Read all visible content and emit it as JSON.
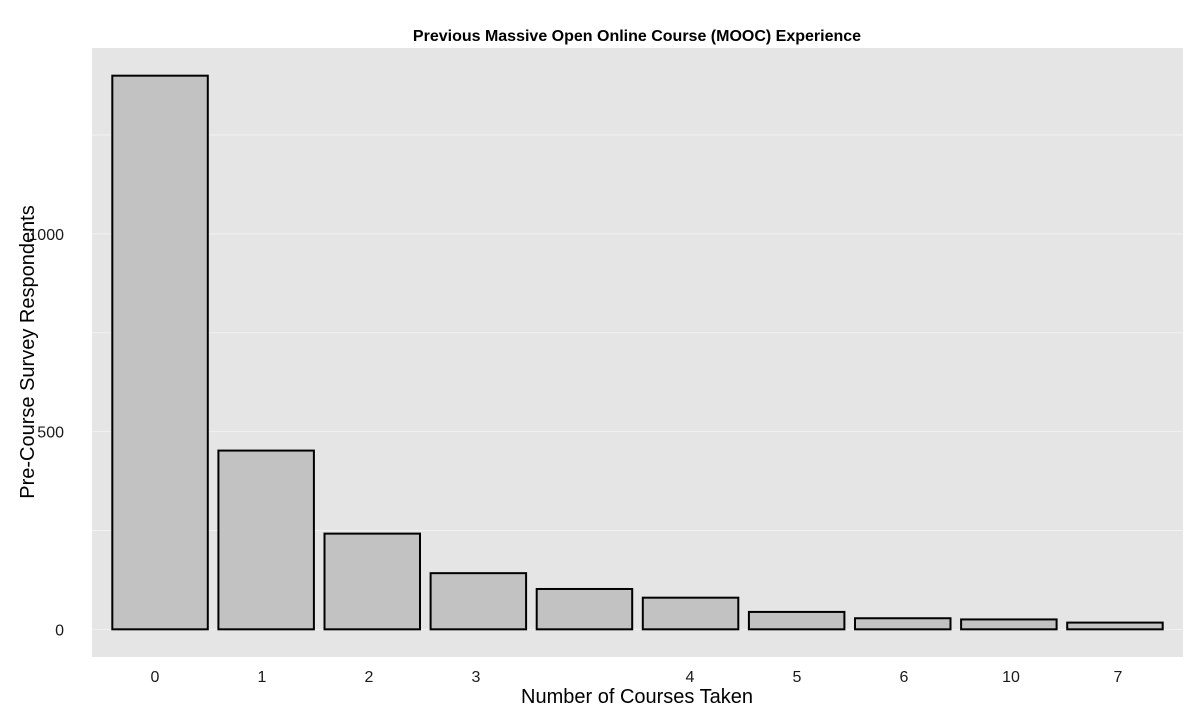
{
  "chart_data": {
    "type": "bar",
    "title": "Previous Massive Open Online Course (MOOC) Experience",
    "xlabel": "Number of Courses Taken",
    "ylabel": "Pre-Course Survey Respondents",
    "categories": [
      "0",
      "1",
      "2",
      "3",
      "",
      "4",
      "5",
      "6",
      "10",
      "7"
    ],
    "values": [
      1400,
      452,
      242,
      142,
      102,
      80,
      44,
      28,
      25,
      17
    ],
    "ylim": [
      -70,
      1470
    ],
    "yticks": [
      0,
      500,
      1000
    ],
    "minor_gridlines": [
      250,
      750,
      1250
    ],
    "grid": true,
    "legend": "none",
    "colors": {
      "panel": "#e5e5e5",
      "bar_fill": "#c2c2c2",
      "bar_stroke": "#000000",
      "grid": "#f2f2f2"
    }
  }
}
